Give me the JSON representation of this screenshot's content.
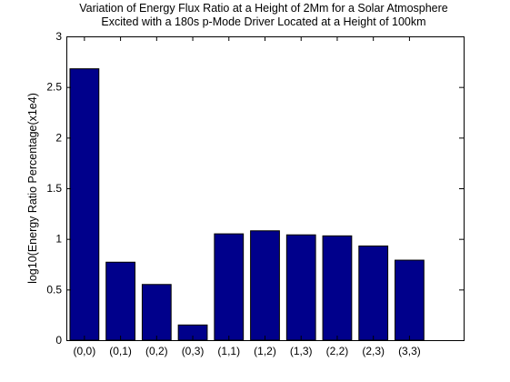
{
  "chart_data": {
    "type": "bar",
    "title": "Variation of Energy Flux Ratio at a Height of 2Mm for a Solar Atmosphere",
    "subtitle": "Excited with a 180s p-Mode Driver Located at a Height of 100km",
    "xlabel": "",
    "ylabel": "log10(Energy Ratio Percentage(x1e4)",
    "categories": [
      "(0,0)",
      "(0,1)",
      "(0,2)",
      "(0,3)",
      "(1,1)",
      "(1,2)",
      "(1,3)",
      "(2,2)",
      "(2,3)",
      "(3,3)"
    ],
    "values": [
      2.68,
      0.77,
      0.55,
      0.15,
      1.05,
      1.08,
      1.04,
      1.03,
      0.93,
      0.79
    ],
    "ylim": [
      0,
      3
    ],
    "yticks": [
      "0",
      "0.5",
      "1",
      "1.5",
      "2",
      "2.5",
      "3"
    ],
    "xlim": [
      0.5,
      11.5
    ],
    "grid": false,
    "legend": "none",
    "bar_color": "#00008B",
    "axis_color": "#000000"
  }
}
